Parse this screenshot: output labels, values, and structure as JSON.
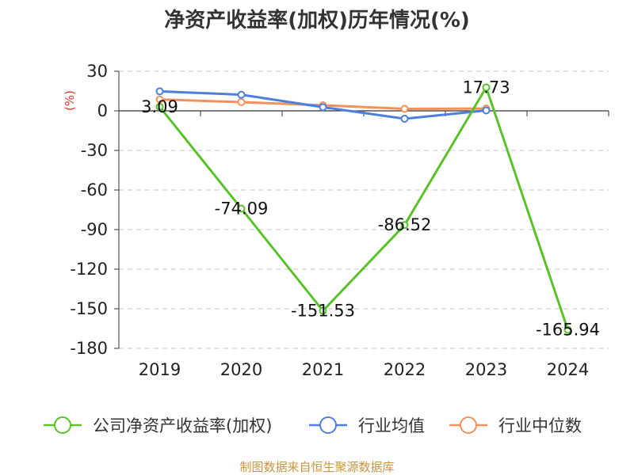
{
  "chart_data": {
    "type": "line",
    "title": "净资产收益率(加权)历年情况(%)",
    "ylabel": "(%)",
    "categories": [
      "2019",
      "2020",
      "2021",
      "2022",
      "2023",
      "2024"
    ],
    "ylim": [
      -180,
      30
    ],
    "yticks": [
      30,
      0,
      -30,
      -60,
      -90,
      -120,
      -150,
      -180
    ],
    "grid": true,
    "legend_position": "bottom",
    "series": [
      {
        "name": "公司净资产收益率(加权)",
        "color": "#5ac12b",
        "values": [
          3.09,
          -74.09,
          -151.53,
          -86.52,
          17.73,
          -165.94
        ],
        "labels": [
          "3.09",
          "-74.09",
          "-151.53",
          "-86.52",
          "17.73",
          "-165.94"
        ]
      },
      {
        "name": "行业均值",
        "color": "#4f7fdc",
        "values": [
          14.8,
          12.2,
          2.8,
          -6.0,
          0.3,
          null
        ]
      },
      {
        "name": "行业中位数",
        "color": "#f4905a",
        "values": [
          8.6,
          6.6,
          4.2,
          1.5,
          1.7,
          null
        ]
      }
    ],
    "source": "制图数据来自恒生聚源数据库"
  }
}
